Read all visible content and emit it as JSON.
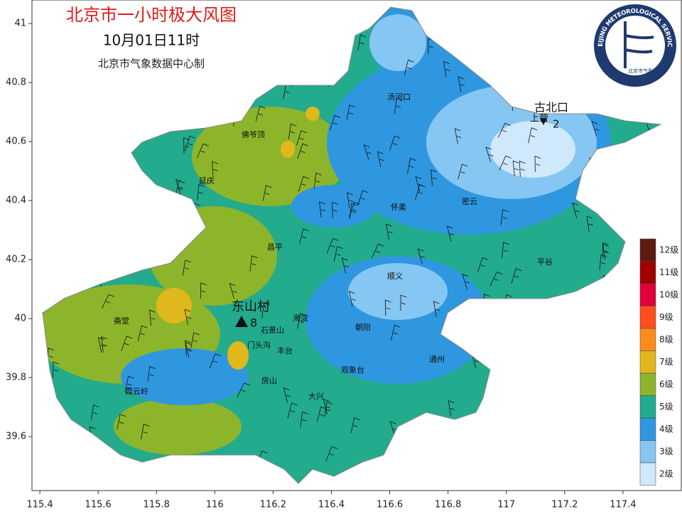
{
  "header": {
    "title": "北京市一小时极大风图",
    "datetime": "10月01日11时",
    "source": "北京市气象数据中心制"
  },
  "logo": {
    "text": "BEIJING METEOROLOGICAL SERVICE",
    "subtext": "北京市气象局"
  },
  "axes": {
    "xlim": [
      115.373,
      117.6
    ],
    "ylim": [
      39.417,
      41.08
    ],
    "xticks": [
      115.4,
      115.6,
      115.8,
      116,
      116.2,
      116.4,
      116.6,
      116.8,
      117,
      117.2,
      117.4
    ],
    "yticks": [
      41,
      40.8,
      40.6,
      40.4,
      40.2,
      40,
      39.8,
      39.6
    ]
  },
  "legend": {
    "levels": [
      {
        "label": "12级",
        "color": "#5e1a10"
      },
      {
        "label": "11级",
        "color": "#a00000"
      },
      {
        "label": "10级",
        "color": "#e0003a"
      },
      {
        "label": "9级",
        "color": "#ff4f1f"
      },
      {
        "label": "8级",
        "color": "#ff8c1a"
      },
      {
        "label": "7级",
        "color": "#e0b81e"
      },
      {
        "label": "6级",
        "color": "#8db52c"
      },
      {
        "label": "5级",
        "color": "#23ab8d"
      },
      {
        "label": "4级",
        "color": "#2e97e0"
      },
      {
        "label": "3级",
        "color": "#86c6f2"
      },
      {
        "label": "2级",
        "color": "#cfe8fb"
      }
    ]
  },
  "stations": [
    {
      "name": "东山村",
      "value": 8
    },
    {
      "name": "古北口",
      "value": 2
    },
    {
      "name": "上营"
    }
  ],
  "places": [
    "汤河口",
    "佛爷顶",
    "延庆",
    "怀柔",
    "密云",
    "昌平",
    "顺义",
    "平谷",
    "斋堂",
    "海淀",
    "朝阳",
    "石景山",
    "门头沟",
    "丰台",
    "通州",
    "观象台",
    "房山",
    "大兴",
    "霞云岭"
  ]
}
